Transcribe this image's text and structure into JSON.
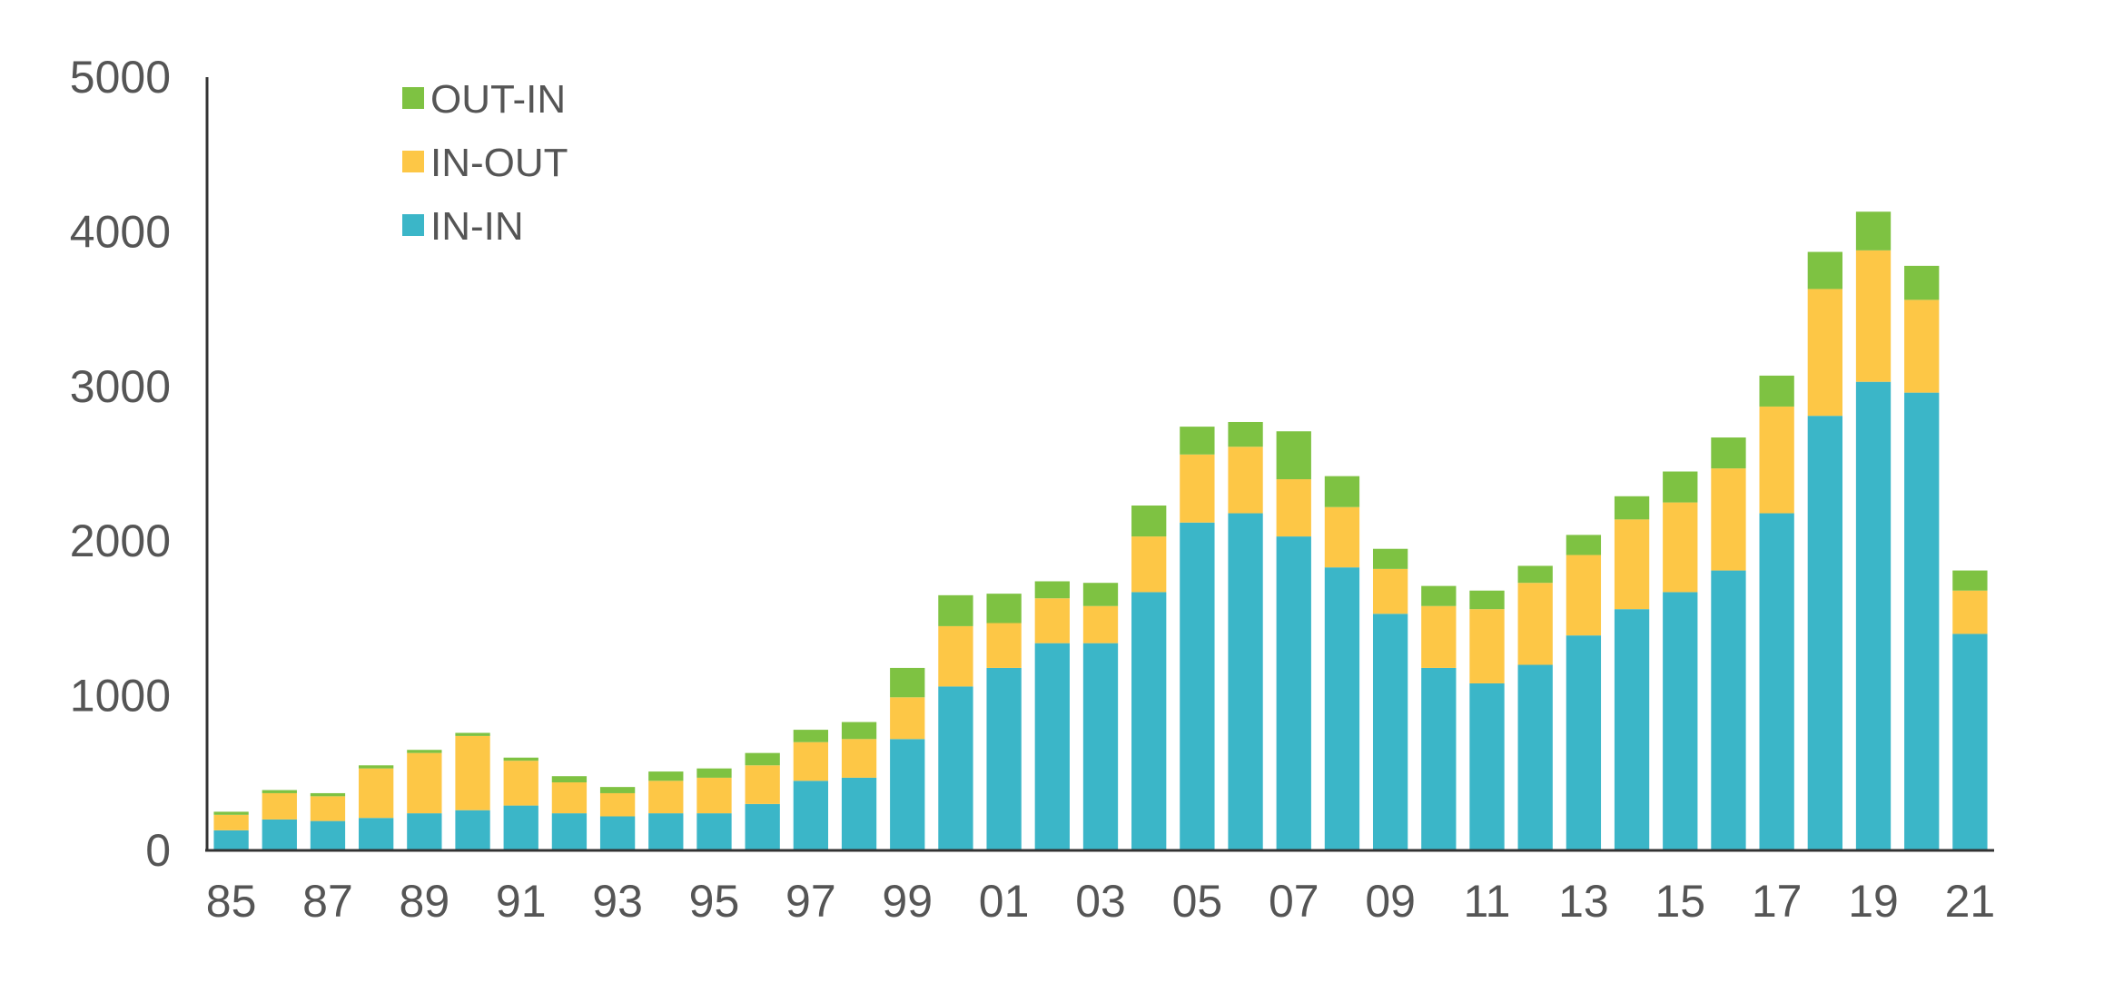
{
  "chart_data": {
    "type": "bar",
    "stacked": true,
    "categories": [
      "85",
      "86",
      "87",
      "88",
      "89",
      "90",
      "91",
      "92",
      "93",
      "94",
      "95",
      "96",
      "97",
      "98",
      "99",
      "00",
      "01",
      "02",
      "03",
      "04",
      "05",
      "06",
      "07",
      "08",
      "09",
      "10",
      "11",
      "12",
      "13",
      "14",
      "15",
      "16",
      "17",
      "18",
      "19",
      "20",
      "21"
    ],
    "x_tick_labels": [
      "85",
      "87",
      "89",
      "91",
      "93",
      "95",
      "97",
      "99",
      "01",
      "03",
      "05",
      "07",
      "09",
      "11",
      "13",
      "15",
      "17",
      "19",
      "21"
    ],
    "y_ticks": [
      0,
      1000,
      2000,
      3000,
      4000,
      5000
    ],
    "ylim": [
      0,
      5000
    ],
    "grid": false,
    "legend_position": "top-left",
    "series": [
      {
        "name": "IN-IN",
        "color": "#3BB6C8",
        "values": [
          130,
          200,
          190,
          210,
          240,
          260,
          290,
          240,
          220,
          240,
          240,
          300,
          450,
          470,
          720,
          1060,
          1180,
          1340,
          1340,
          1670,
          2120,
          2180,
          2030,
          1830,
          1530,
          1180,
          1080,
          1200,
          1390,
          1560,
          1670,
          1810,
          2180,
          2810,
          3030,
          2960,
          1400
        ]
      },
      {
        "name": "IN-OUT",
        "color": "#FDC746",
        "values": [
          100,
          170,
          160,
          320,
          390,
          480,
          290,
          200,
          150,
          210,
          230,
          250,
          250,
          250,
          270,
          390,
          290,
          290,
          240,
          360,
          440,
          430,
          370,
          390,
          290,
          400,
          480,
          530,
          520,
          580,
          580,
          660,
          690,
          820,
          850,
          600,
          280
        ]
      },
      {
        "name": "OUT-IN",
        "color": "#7EC242",
        "values": [
          20,
          20,
          20,
          20,
          20,
          20,
          20,
          40,
          40,
          60,
          60,
          80,
          80,
          110,
          190,
          200,
          190,
          110,
          150,
          200,
          180,
          160,
          310,
          200,
          130,
          130,
          120,
          110,
          130,
          150,
          200,
          200,
          200,
          240,
          250,
          220,
          130
        ]
      }
    ]
  }
}
